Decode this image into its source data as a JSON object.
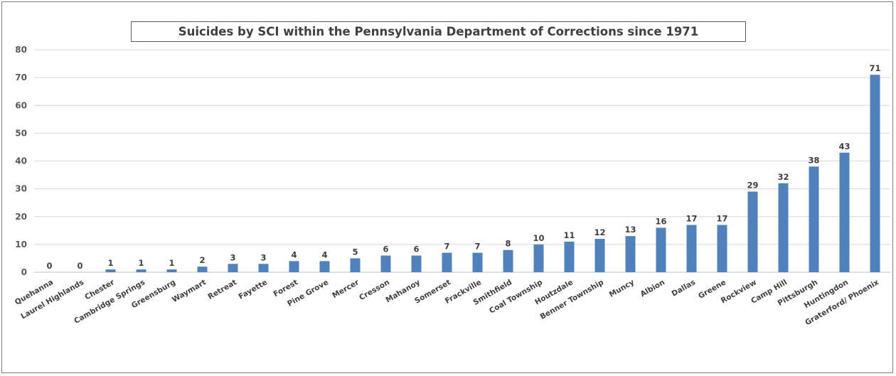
{
  "chart_data": {
    "type": "bar",
    "title": "Suicides by SCI within the Pennsylvania Department of Corrections since 1971",
    "xlabel": "",
    "ylabel": "",
    "ylim": [
      0,
      80
    ],
    "yticks": [
      0,
      10,
      20,
      30,
      40,
      50,
      60,
      70,
      80
    ],
    "grid": true,
    "legend": "none",
    "bar_color": "#4f81bd",
    "categories": [
      "Quehanna",
      "Laurel Highlands",
      "Chester",
      "Cambridge Springs",
      "Greensburg",
      "Waymart",
      "Retreat",
      "Fayette",
      "Forest",
      "Pine Grove",
      "Mercer",
      "Cresson",
      "Mahanoy",
      "Somerset",
      "Frackville",
      "Smithfield",
      "Coal Township",
      "Houtzdale",
      "Benner Township",
      "Muncy",
      "Albion",
      "Dallas",
      "Greene",
      "Rockview",
      "Camp Hill",
      "Pittsburgh",
      "Huntingdon",
      "Graterford/ Phoenix"
    ],
    "values": [
      0,
      0,
      1,
      1,
      1,
      2,
      3,
      3,
      4,
      4,
      5,
      6,
      6,
      7,
      7,
      8,
      10,
      11,
      12,
      13,
      16,
      17,
      17,
      29,
      32,
      38,
      43,
      71
    ]
  }
}
